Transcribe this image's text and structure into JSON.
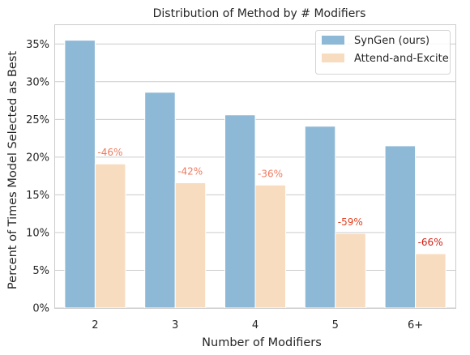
{
  "chart_data": {
    "type": "bar",
    "title": "Distribution of Method by # Modifiers",
    "xlabel": "Number of Modifiers",
    "ylabel": "Percent of Times Model Selected as Best",
    "categories": [
      "2",
      "3",
      "4",
      "5",
      "6+"
    ],
    "ylim": [
      0,
      37.5
    ],
    "yticks": [
      "0%",
      "5%",
      "10%",
      "15%",
      "20%",
      "25%",
      "30%",
      "35%"
    ],
    "ytick_values": [
      0,
      5,
      10,
      15,
      20,
      25,
      30,
      35
    ],
    "grid": "horizontal",
    "legend_position": "top-right",
    "series": [
      {
        "name": "SynGen (ours)",
        "color": "#8db9d7",
        "values": [
          35.5,
          28.6,
          25.6,
          24.1,
          21.5
        ]
      },
      {
        "name": "Attend-and-Excite",
        "color": "#f8dcc0",
        "values": [
          19.1,
          16.6,
          16.3,
          9.9,
          7.2
        ]
      }
    ],
    "annotations": [
      {
        "category": "2",
        "text": "-46%",
        "color": "#ef7a5e"
      },
      {
        "category": "3",
        "text": "-42%",
        "color": "#ef7a5e"
      },
      {
        "category": "4",
        "text": "-36%",
        "color": "#ef7a5e"
      },
      {
        "category": "5",
        "text": "-59%",
        "color": "#e53d1f"
      },
      {
        "category": "6+",
        "text": "-66%",
        "color": "#d41e14"
      }
    ]
  }
}
